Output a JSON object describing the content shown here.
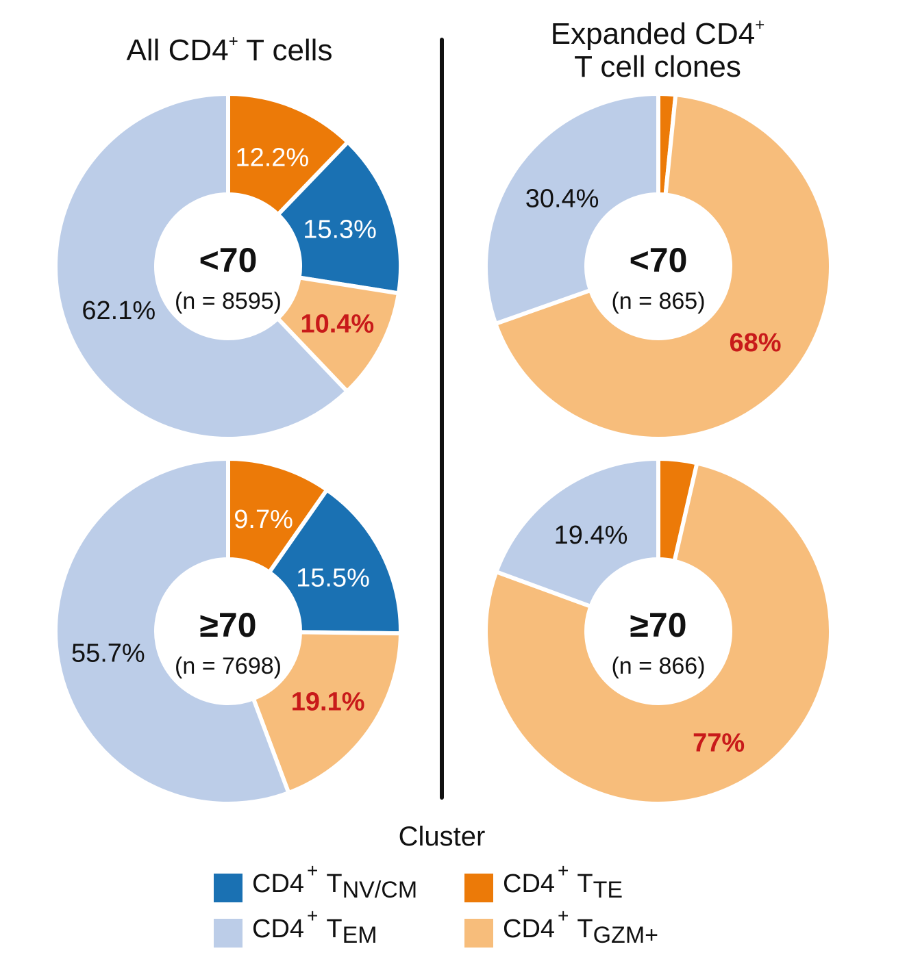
{
  "titles": {
    "left_prefix": "All CD4",
    "left_sup": "+",
    "left_suffix": " T cells",
    "right_line1_prefix": "Expanded CD4",
    "right_line1_sup": "+",
    "right_line2": "T cell clones"
  },
  "legend": {
    "title": "Cluster",
    "items": [
      {
        "key": "nvcm",
        "prefix": "CD4",
        "sup": "+",
        "t": "T",
        "sub": "NV/CM",
        "color": "#1a71b3"
      },
      {
        "key": "te",
        "prefix": "CD4",
        "sup": "+",
        "t": "T",
        "sub": "TE",
        "color": "#ec7a08"
      },
      {
        "key": "em",
        "prefix": "CD4",
        "sup": "+",
        "t": "T",
        "sub": "EM",
        "color": "#bccde8"
      },
      {
        "key": "gzm",
        "prefix": "CD4",
        "sup": "+",
        "t": "T",
        "sub": "GZM+",
        "color": "#f7bd7b"
      }
    ]
  },
  "chart_data": [
    {
      "type": "pie",
      "panel": "All CD4+ T cells",
      "group": "<70",
      "n_label": "(n = 8595)",
      "slices": [
        {
          "cluster": "te",
          "value": 12.2,
          "label": "12.2%"
        },
        {
          "cluster": "nvcm",
          "value": 15.3,
          "label": "15.3%"
        },
        {
          "cluster": "gzm",
          "value": 10.4,
          "label": "10.4%",
          "highlight": true
        },
        {
          "cluster": "em",
          "value": 62.1,
          "label": "62.1%"
        }
      ]
    },
    {
      "type": "pie",
      "panel": "All CD4+ T cells",
      "group": "≥70",
      "n_label": "(n = 7698)",
      "slices": [
        {
          "cluster": "te",
          "value": 9.7,
          "label": "9.7%"
        },
        {
          "cluster": "nvcm",
          "value": 15.5,
          "label": "15.5%"
        },
        {
          "cluster": "gzm",
          "value": 19.1,
          "label": "19.1%",
          "highlight": true
        },
        {
          "cluster": "em",
          "value": 55.7,
          "label": "55.7%"
        }
      ]
    },
    {
      "type": "pie",
      "panel": "Expanded CD4+ T cell clones",
      "group": "<70",
      "n_label": "(n = 865)",
      "slices": [
        {
          "cluster": "te",
          "value": 1.6,
          "label": ""
        },
        {
          "cluster": "gzm",
          "value": 68,
          "label": "68%",
          "highlight": true
        },
        {
          "cluster": "em",
          "value": 30.4,
          "label": "30.4%"
        }
      ]
    },
    {
      "type": "pie",
      "panel": "Expanded CD4+ T cell clones",
      "group": "≥70",
      "n_label": "(n = 866)",
      "slices": [
        {
          "cluster": "te",
          "value": 3.6,
          "label": ""
        },
        {
          "cluster": "gzm",
          "value": 77,
          "label": "77%",
          "highlight": true
        },
        {
          "cluster": "em",
          "value": 19.4,
          "label": "19.4%"
        }
      ]
    }
  ],
  "colors": {
    "nvcm": "#1a71b3",
    "te": "#ec7a08",
    "em": "#bccde8",
    "gzm": "#f7bd7b",
    "highlight_text": "#c81a1a",
    "divider": "#111111"
  }
}
